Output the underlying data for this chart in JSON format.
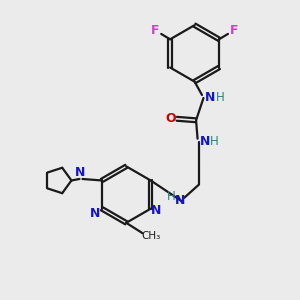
{
  "background_color": "#ebebeb",
  "bond_color": "#1a1a1a",
  "nitrogen_color": "#1414cc",
  "oxygen_color": "#cc0000",
  "fluorine_color": "#cc44cc",
  "teal_color": "#2a8080",
  "figsize": [
    3.0,
    3.0
  ],
  "dpi": 100,
  "xlim": [
    0,
    10
  ],
  "ylim": [
    0,
    10
  ]
}
